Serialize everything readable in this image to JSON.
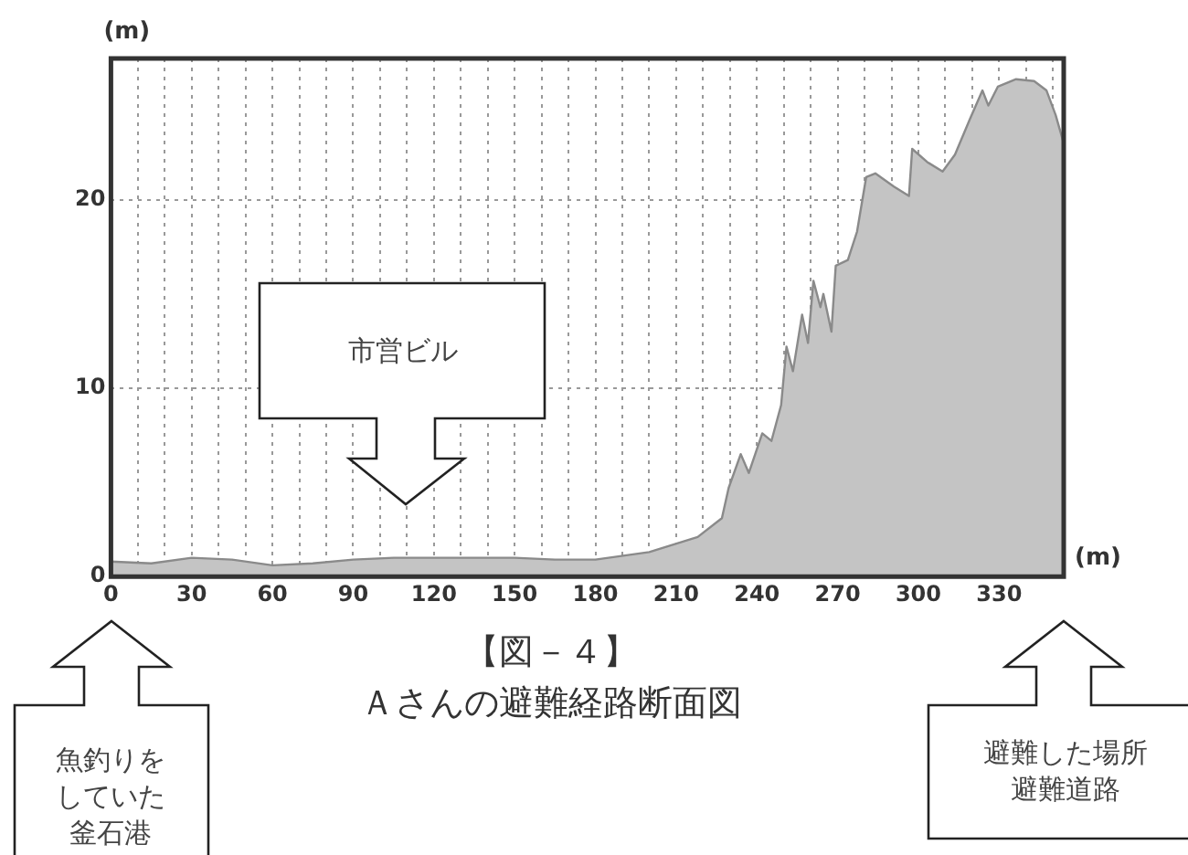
{
  "chart_data": {
    "type": "area",
    "title": "【図－４】",
    "subtitle": "Ａさんの避難経路断面図",
    "xlabel": "(m)",
    "ylabel": "(m)",
    "x": [
      0,
      15,
      30,
      45,
      60,
      75,
      90,
      105,
      120,
      135,
      150,
      165,
      180,
      200,
      218,
      227,
      229.5,
      234,
      237,
      242,
      245.4,
      249,
      251,
      253.4,
      256.8,
      259,
      261,
      263.6,
      264.7,
      267.7,
      269.3,
      273.8,
      277.2,
      280.6,
      284,
      290.9,
      296.5,
      297.7,
      303.3,
      309,
      313.6,
      319.2,
      323.8,
      326,
      329.5,
      336.3,
      343,
      347.6,
      351,
      354
    ],
    "series": [
      {
        "color": "#c4c4c4",
        "values": [
          0.8,
          0.7,
          1.0,
          0.9,
          0.6,
          0.7,
          0.9,
          1.0,
          1.0,
          1.0,
          1.0,
          0.9,
          0.9,
          1.3,
          2.1,
          3.1,
          4.7,
          6.5,
          5.5,
          7.6,
          7.2,
          9.1,
          12.2,
          10.9,
          13.9,
          12.4,
          15.7,
          14.3,
          15.0,
          13.0,
          16.5,
          16.8,
          18.3,
          21.2,
          21.4,
          20.7,
          20.2,
          22.7,
          22.0,
          21.5,
          22.4,
          24.3,
          25.8,
          25.0,
          26.0,
          26.4,
          26.3,
          25.8,
          24.5,
          23.0
        ]
      }
    ],
    "xlim": [
      0,
      354
    ],
    "ylim": [
      0,
      27.5
    ],
    "xticks": [
      0,
      {
        "value": 10,
        "label": null
      },
      {
        "value": 20,
        "label": null
      },
      30,
      {
        "value": 40,
        "label": null
      },
      {
        "value": 50,
        "label": null
      },
      60,
      {
        "value": 70,
        "label": null
      },
      {
        "value": 80,
        "label": null
      },
      90,
      {
        "value": 100,
        "label": null
      },
      {
        "value": 110,
        "label": null
      },
      120,
      {
        "value": 130,
        "label": null
      },
      {
        "value": 140,
        "label": null
      },
      150,
      {
        "value": 160,
        "label": null
      },
      {
        "value": 170,
        "label": null
      },
      180,
      {
        "value": 190,
        "label": null
      },
      {
        "value": 200,
        "label": null
      },
      210,
      {
        "value": 220,
        "label": null
      },
      {
        "value": 230,
        "label": null
      },
      240,
      {
        "value": 250,
        "label": null
      },
      {
        "value": 260,
        "label": null
      },
      270,
      {
        "value": 280,
        "label": null
      },
      {
        "value": 290,
        "label": null
      },
      300,
      {
        "value": 310,
        "label": null
      },
      {
        "value": 320,
        "label": null
      },
      330,
      {
        "value": 340,
        "label": null
      },
      {
        "value": 350,
        "label": null
      }
    ],
    "yticks": [
      0,
      10,
      20
    ],
    "grid": true,
    "legend": false,
    "marker": "none",
    "line_style": "solid",
    "annotations": [
      "市営ビル",
      "魚釣りをしていた釜石港",
      "避難した場所避難道路"
    ]
  }
}
